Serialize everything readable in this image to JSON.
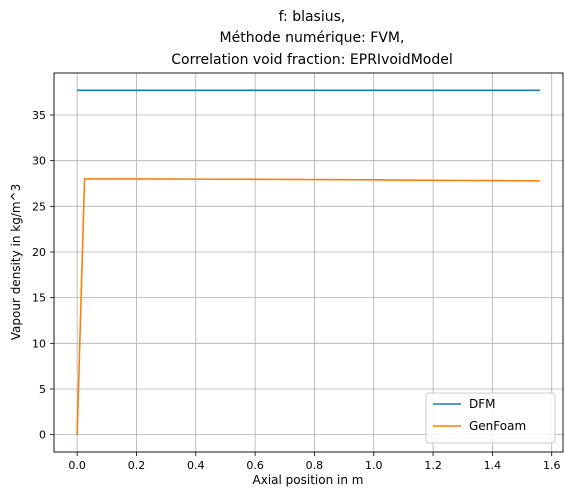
{
  "chart_data": {
    "type": "line",
    "title_lines": [
      "f: blasius,",
      "Méthode numérique: FVM,",
      "Correlation void fraction: EPRIvoidModel"
    ],
    "xlabel": "Axial position in m",
    "ylabel": "Vapour density in kg/m^3",
    "xlim": [
      -0.078,
      1.638
    ],
    "ylim": [
      -1.9,
      39.6
    ],
    "x_ticks": [
      0.0,
      0.2,
      0.4,
      0.6,
      0.8,
      1.0,
      1.2,
      1.4,
      1.6
    ],
    "x_tick_labels": [
      "0.0",
      "0.2",
      "0.4",
      "0.6",
      "0.8",
      "1.0",
      "1.2",
      "1.4",
      "1.6"
    ],
    "y_ticks": [
      0,
      5,
      10,
      15,
      20,
      25,
      30,
      35
    ],
    "y_tick_labels": [
      "0",
      "5",
      "10",
      "15",
      "20",
      "25",
      "30",
      "35"
    ],
    "grid": true,
    "legend_position": "bottom-right",
    "series": [
      {
        "name": "DFM",
        "color": "#1f77b4",
        "x": [
          0.0,
          1.56
        ],
        "y": [
          37.7,
          37.7
        ]
      },
      {
        "name": "GenFoam",
        "color": "#ff7f0e",
        "x": [
          0.0,
          0.025,
          0.2,
          0.4,
          0.6,
          0.8,
          1.0,
          1.1,
          1.2,
          1.3,
          1.4,
          1.5,
          1.56
        ],
        "y": [
          0.0,
          28.0,
          28.0,
          27.98,
          27.96,
          27.93,
          27.9,
          27.88,
          27.85,
          27.83,
          27.82,
          27.8,
          27.78
        ]
      }
    ]
  }
}
